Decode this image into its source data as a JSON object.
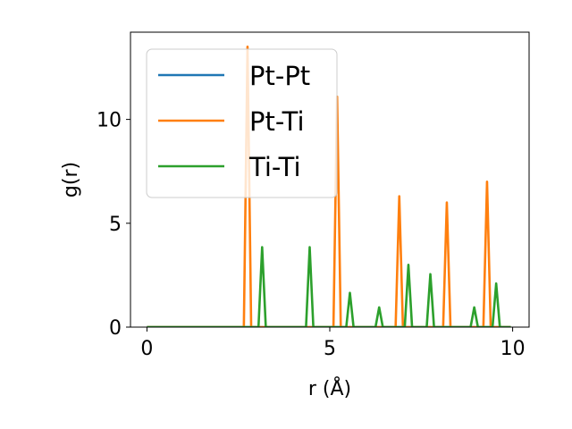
{
  "chart_data": {
    "type": "line",
    "xlabel": "r (Å)",
    "ylabel": "g(r)",
    "xlim": [
      -0.45,
      10.45
    ],
    "ylim": [
      0,
      14.2
    ],
    "xticks": [
      0,
      5,
      10
    ],
    "yticks": [
      0,
      5,
      10
    ],
    "grid": false,
    "legend_position": "top-left",
    "series": [
      {
        "name": "Pt-Pt",
        "color": "#1f77b4",
        "x": [
          0,
          9.95
        ],
        "y": [
          0,
          0
        ]
      },
      {
        "name": "Pt-Ti",
        "color": "#ff7f0e",
        "x": [
          0,
          2.65,
          2.75,
          2.85,
          5.1,
          5.2,
          5.3,
          6.8,
          6.9,
          7.0,
          8.1,
          8.2,
          8.3,
          9.2,
          9.3,
          9.4,
          9.95
        ],
        "y": [
          0,
          0,
          13.5,
          0,
          0,
          11.1,
          0,
          0,
          6.3,
          0,
          0,
          6.0,
          0,
          0,
          7.0,
          0,
          0
        ]
      },
      {
        "name": "Ti-Ti",
        "color": "#2ca02c",
        "x": [
          0,
          3.05,
          3.15,
          3.25,
          4.35,
          4.45,
          4.55,
          5.45,
          5.55,
          5.65,
          6.25,
          6.35,
          6.45,
          7.05,
          7.15,
          7.25,
          7.65,
          7.75,
          7.85,
          8.85,
          8.95,
          9.05,
          9.45,
          9.55,
          9.65,
          9.95
        ],
        "y": [
          0,
          0,
          3.85,
          0,
          0,
          3.85,
          0,
          0,
          1.65,
          0,
          0,
          0.95,
          0,
          0,
          3.0,
          0,
          0,
          2.55,
          0,
          0,
          0.95,
          0,
          0,
          2.1,
          0,
          0
        ]
      }
    ]
  }
}
